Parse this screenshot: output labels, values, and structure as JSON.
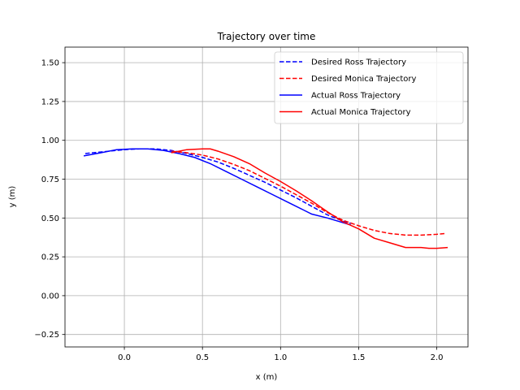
{
  "chart_data": {
    "type": "line",
    "title": "Trajectory over time",
    "xlabel": "x (m)",
    "ylabel": "y (m)",
    "xlim": [
      -0.38,
      2.2
    ],
    "ylim": [
      -0.33,
      1.6
    ],
    "xticks": [
      0.0,
      0.5,
      1.0,
      1.5,
      2.0
    ],
    "xtick_labels": [
      "0.0",
      "0.5",
      "1.0",
      "1.5",
      "2.0"
    ],
    "yticks": [
      -0.25,
      0.0,
      0.25,
      0.5,
      0.75,
      1.0,
      1.25,
      1.5
    ],
    "ytick_labels": [
      "−0.25",
      "0.00",
      "0.25",
      "0.50",
      "0.75",
      "1.00",
      "1.25",
      "1.50"
    ],
    "grid": true,
    "legend_position": "top-right",
    "series": [
      {
        "name": "Desired Ross Trajectory",
        "color": "#0000ff",
        "style": "dashed",
        "x": [
          -0.25,
          -0.1,
          0.0,
          0.1,
          0.2,
          0.3,
          0.4,
          0.5,
          0.6,
          0.7,
          0.8,
          0.9,
          1.0,
          1.1,
          1.2,
          1.3,
          1.4,
          1.45
        ],
        "y": [
          0.915,
          0.93,
          0.94,
          0.945,
          0.945,
          0.935,
          0.915,
          0.89,
          0.86,
          0.82,
          0.775,
          0.73,
          0.68,
          0.63,
          0.575,
          0.52,
          0.48,
          0.465
        ]
      },
      {
        "name": "Desired Monica Trajectory",
        "color": "#ff0000",
        "style": "dashed",
        "x": [
          0.3,
          0.4,
          0.5,
          0.6,
          0.7,
          0.8,
          0.9,
          1.0,
          1.1,
          1.2,
          1.3,
          1.4,
          1.5,
          1.6,
          1.7,
          1.8,
          1.9,
          2.0,
          2.05
        ],
        "y": [
          0.93,
          0.92,
          0.905,
          0.88,
          0.845,
          0.805,
          0.755,
          0.705,
          0.65,
          0.595,
          0.535,
          0.485,
          0.45,
          0.42,
          0.4,
          0.39,
          0.39,
          0.395,
          0.4
        ]
      },
      {
        "name": "Actual Ross Trajectory",
        "color": "#0000ff",
        "style": "solid",
        "x": [
          -0.26,
          -0.15,
          -0.05,
          0.05,
          0.15,
          0.25,
          0.35,
          0.45,
          0.55,
          0.65,
          0.75,
          0.85,
          0.95,
          1.05,
          1.15,
          1.2,
          1.3,
          1.4,
          1.45
        ],
        "y": [
          0.9,
          0.92,
          0.94,
          0.945,
          0.945,
          0.935,
          0.915,
          0.89,
          0.85,
          0.8,
          0.75,
          0.7,
          0.65,
          0.6,
          0.55,
          0.525,
          0.5,
          0.47,
          0.455
        ]
      },
      {
        "name": "Actual Monica Trajectory",
        "color": "#ff0000",
        "style": "solid",
        "x": [
          0.3,
          0.4,
          0.5,
          0.55,
          0.6,
          0.7,
          0.8,
          0.9,
          1.0,
          1.1,
          1.2,
          1.3,
          1.4,
          1.5,
          1.6,
          1.7,
          1.8,
          1.9,
          1.95,
          2.0,
          2.07
        ],
        "y": [
          0.92,
          0.94,
          0.945,
          0.945,
          0.93,
          0.895,
          0.85,
          0.79,
          0.735,
          0.675,
          0.61,
          0.54,
          0.475,
          0.43,
          0.37,
          0.34,
          0.31,
          0.31,
          0.305,
          0.305,
          0.31
        ]
      }
    ]
  }
}
